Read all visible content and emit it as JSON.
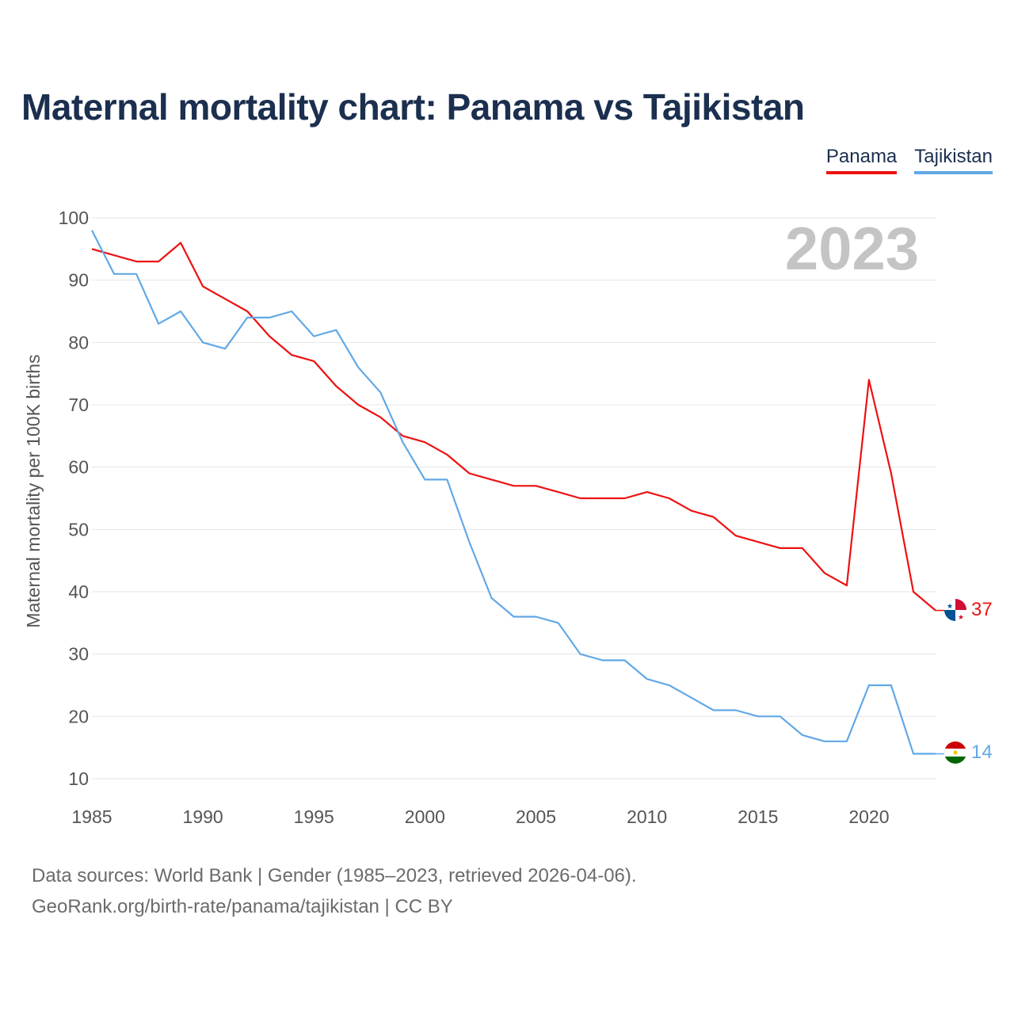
{
  "title": "Maternal mortality chart: Panama vs Tajikistan",
  "legend": {
    "panama": "Panama",
    "tajikistan": "Tajikistan"
  },
  "year_label": "2023",
  "footer": {
    "line1": "Data sources: World Bank | Gender (1985–2023, retrieved 2026-04-06).",
    "line2": "GeoRank.org/birth-rate/panama/tajikistan | CC BY"
  },
  "colors": {
    "panama": "#ee1111",
    "tajikistan": "#62a8e6",
    "title": "#1b2f4f",
    "grid": "#e6e6e6"
  },
  "chart_data": {
    "type": "line",
    "title": "Maternal mortality chart: Panama vs Tajikistan",
    "xlabel": "",
    "ylabel": "Maternal mortality per 100K births",
    "xlim": [
      1985,
      2023
    ],
    "ylim": [
      10,
      100
    ],
    "xticks": [
      1985,
      1990,
      1995,
      2000,
      2005,
      2010,
      2015,
      2020
    ],
    "yticks": [
      10,
      20,
      30,
      40,
      50,
      60,
      70,
      80,
      90,
      100
    ],
    "grid": true,
    "legend_position": "top-right",
    "x": [
      1985,
      1986,
      1987,
      1988,
      1989,
      1990,
      1991,
      1992,
      1993,
      1994,
      1995,
      1996,
      1997,
      1998,
      1999,
      2000,
      2001,
      2002,
      2003,
      2004,
      2005,
      2006,
      2007,
      2008,
      2009,
      2010,
      2011,
      2012,
      2013,
      2014,
      2015,
      2016,
      2017,
      2018,
      2019,
      2020,
      2021,
      2022,
      2023
    ],
    "series": [
      {
        "name": "Panama",
        "color": "#ee1111",
        "end_label": "37",
        "values": [
          95,
          94,
          93,
          93,
          96,
          89,
          87,
          85,
          81,
          78,
          77,
          73,
          70,
          68,
          65,
          64,
          62,
          59,
          58,
          57,
          57,
          56,
          55,
          55,
          55,
          56,
          55,
          53,
          52,
          49,
          48,
          47,
          47,
          43,
          41,
          74,
          59,
          40,
          37
        ]
      },
      {
        "name": "Tajikistan",
        "color": "#62a8e6",
        "end_label": "14",
        "values": [
          98,
          91,
          91,
          83,
          85,
          80,
          79,
          84,
          84,
          85,
          81,
          82,
          76,
          72,
          64,
          58,
          58,
          48,
          39,
          36,
          36,
          35,
          30,
          29,
          29,
          26,
          25,
          23,
          21,
          21,
          20,
          20,
          17,
          16,
          16,
          25,
          25,
          14,
          14
        ]
      }
    ]
  }
}
